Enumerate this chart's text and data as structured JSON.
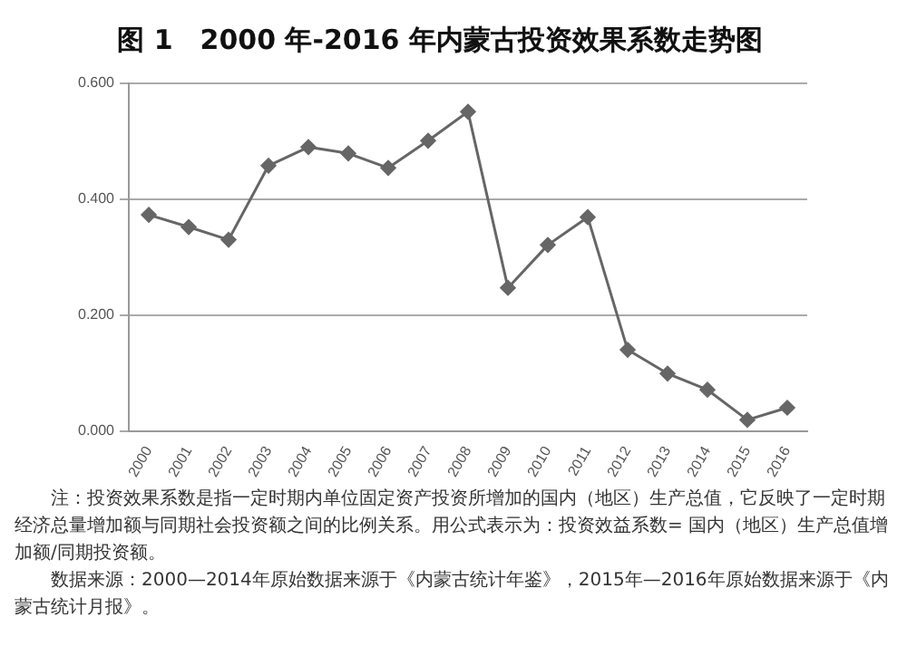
{
  "chart_data": {
    "type": "line",
    "title": "图 1　2000 年-2016 年内蒙古投资效果系数走势图",
    "categories": [
      "2000",
      "2001",
      "2002",
      "2003",
      "2004",
      "2005",
      "2006",
      "2007",
      "2008",
      "2009",
      "2010",
      "2011",
      "2012",
      "2013",
      "2014",
      "2015",
      "2016"
    ],
    "series": [
      {
        "color": "#666666",
        "values": [
          0.373,
          0.352,
          0.33,
          0.458,
          0.49,
          0.479,
          0.454,
          0.501,
          0.551,
          0.247,
          0.321,
          0.369,
          0.14,
          0.099,
          0.071,
          0.019,
          0.04
        ]
      }
    ],
    "ylim": [
      0,
      0.6
    ],
    "yticks": [
      {
        "value": 0,
        "label": "0.000"
      },
      {
        "value": 0.2,
        "label": "0.200"
      },
      {
        "value": 0.4,
        "label": "0.400"
      },
      {
        "value": 0.6,
        "label": "0.600"
      }
    ],
    "grid": "y",
    "legend": false,
    "marker": "diamond",
    "line_style": "solid",
    "annotations": [
      "注：投资效果系数是指一定时期内单位固定资产投资所增加的国内（地区）生产总值，它反映了一定时期经济总量增加额与同期社会投资额之间的比例关系。用公式表示为：投资效益系数= 国内（地区）生产总值增加额/同期投资额。",
      "数据来源：2000—2014年原始数据来源于《内蒙古统计年鉴》，2015年—2016年原始数据来源于《内蒙古统计月报》。"
    ]
  }
}
